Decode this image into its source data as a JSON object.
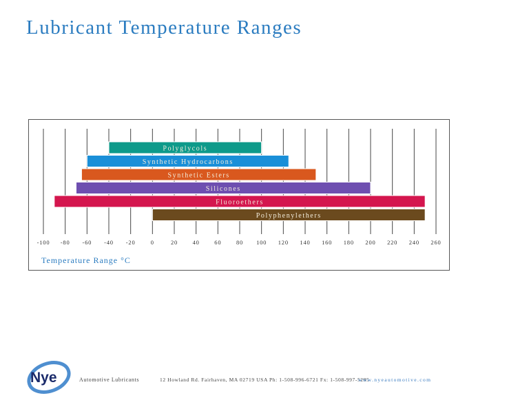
{
  "chart_data": {
    "type": "bar",
    "orientation": "horizontal-range",
    "title": "Lubricant Temperature Ranges",
    "xlabel": "Temperature Range °C",
    "xlim": [
      -100,
      260
    ],
    "xticks": [
      -100,
      -80,
      -60,
      -40,
      -20,
      0,
      20,
      40,
      60,
      80,
      100,
      120,
      140,
      160,
      180,
      200,
      220,
      240,
      260
    ],
    "grid": true,
    "series": [
      {
        "name": "Polyglycols",
        "min": -40,
        "max": 100,
        "color": "#0e9a8a"
      },
      {
        "name": "Synthetic Hydrocarbons",
        "min": -60,
        "max": 125,
        "color": "#1a8fd8"
      },
      {
        "name": "Synthetic Esters",
        "min": -65,
        "max": 150,
        "color": "#d9581e"
      },
      {
        "name": "Silicones",
        "min": -70,
        "max": 200,
        "color": "#6e4fb0"
      },
      {
        "name": "Fluoroethers",
        "min": -90,
        "max": 250,
        "color": "#d4164e"
      },
      {
        "name": "Polyphenylethers",
        "min": 0,
        "max": 250,
        "color": "#6b4a1e"
      }
    ]
  },
  "footer": {
    "logo_text": "Nye",
    "tagline": "Automotive Lubricants",
    "address": "12 Howland Rd.  Fairhaven, MA 02719  USA    Ph: 1-508-996-6721    Fx: 1-508-997-5285",
    "website": "www.nyeautomotive.com"
  }
}
